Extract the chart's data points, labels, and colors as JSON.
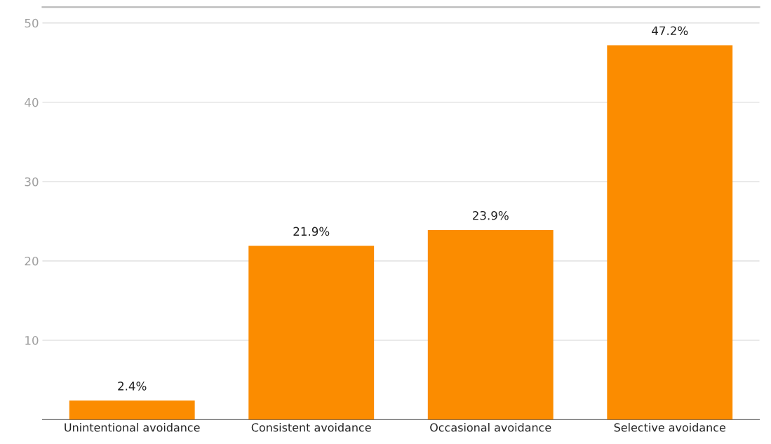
{
  "chart_data": {
    "type": "bar",
    "categories": [
      "Unintentional avoidance",
      "Consistent avoidance",
      "Occasional avoidance",
      "Selective avoidance"
    ],
    "values": [
      2.4,
      21.9,
      23.9,
      47.2
    ],
    "value_labels": [
      "2.4%",
      "21.9%",
      "23.9%",
      "47.2%"
    ],
    "color": "#fb8c00",
    "ylim": [
      0,
      52
    ],
    "yticks": [
      10,
      20,
      30,
      40,
      50
    ],
    "grid": "y",
    "legend": false
  }
}
